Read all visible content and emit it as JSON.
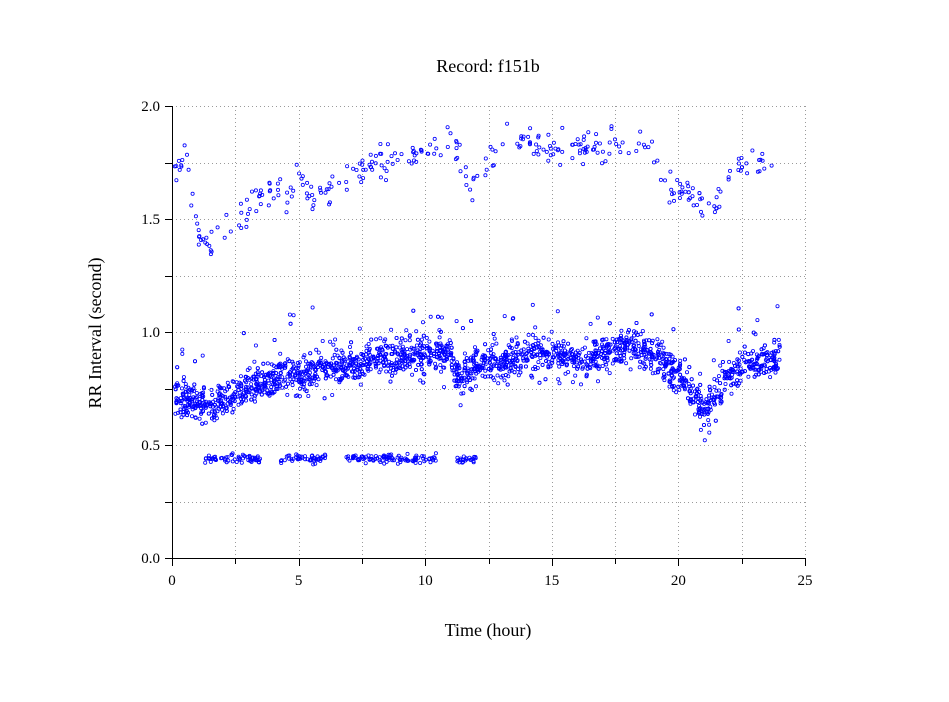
{
  "chart_data": {
    "type": "scatter",
    "title": "Record:  f151b",
    "xlabel": "Time (hour)",
    "ylabel": "RR Interval (second)",
    "xlim": [
      0,
      25
    ],
    "ylim": [
      0,
      2.0
    ],
    "xticks": [
      0,
      5,
      10,
      15,
      20,
      25
    ],
    "xtick_labels": [
      "0",
      "5",
      "10",
      "15",
      "20",
      "25"
    ],
    "yticks": [
      0.0,
      0.5,
      1.0,
      1.5,
      2.0
    ],
    "ytick_labels": [
      "0.0",
      "0.5",
      "1.0",
      "1.5",
      "2.0"
    ],
    "x_minor_step": 2.5,
    "y_minor_step": 0.25,
    "grid": true,
    "marker": "open-circle",
    "color": "#0000ff",
    "series": [
      {
        "x_range": [
          0.1,
          24.0
        ],
        "baseline_trend": [
          [
            0.1,
            0.72
          ],
          [
            0.5,
            0.7
          ],
          [
            1.0,
            0.69
          ],
          [
            1.5,
            0.68
          ],
          [
            2.0,
            0.7
          ],
          [
            2.5,
            0.73
          ],
          [
            3.0,
            0.75
          ],
          [
            3.5,
            0.78
          ],
          [
            4.0,
            0.8
          ],
          [
            4.5,
            0.83
          ],
          [
            5.0,
            0.8
          ],
          [
            5.5,
            0.82
          ],
          [
            6.0,
            0.86
          ],
          [
            7.0,
            0.85
          ],
          [
            8.0,
            0.88
          ],
          [
            9.0,
            0.9
          ],
          [
            10.0,
            0.9
          ],
          [
            10.5,
            0.91
          ],
          [
            11.0,
            0.9
          ],
          [
            11.3,
            0.8
          ],
          [
            11.8,
            0.82
          ],
          [
            12.0,
            0.85
          ],
          [
            12.5,
            0.88
          ],
          [
            13.0,
            0.85
          ],
          [
            13.5,
            0.88
          ],
          [
            14.0,
            0.9
          ],
          [
            14.5,
            0.92
          ],
          [
            15.0,
            0.9
          ],
          [
            15.5,
            0.9
          ],
          [
            16.0,
            0.88
          ],
          [
            16.5,
            0.87
          ],
          [
            17.0,
            0.9
          ],
          [
            17.5,
            0.93
          ],
          [
            18.0,
            0.95
          ],
          [
            18.5,
            0.92
          ],
          [
            19.0,
            0.9
          ],
          [
            19.5,
            0.85
          ],
          [
            20.0,
            0.8
          ],
          [
            20.5,
            0.74
          ],
          [
            21.0,
            0.66
          ],
          [
            21.5,
            0.72
          ],
          [
            22.0,
            0.8
          ],
          [
            22.5,
            0.85
          ],
          [
            23.0,
            0.86
          ],
          [
            23.5,
            0.87
          ],
          [
            24.0,
            0.88
          ]
        ],
        "band_spread": 0.09,
        "lower_cluster": {
          "y_center": 0.44,
          "segments": [
            [
              1.3,
              3.5
            ],
            [
              4.3,
              6.2
            ],
            [
              6.8,
              10.5
            ],
            [
              11.2,
              12.0
            ]
          ]
        },
        "upper_cluster": [
          [
            0.2,
            1.7
          ],
          [
            0.5,
            1.8
          ],
          [
            1.0,
            1.45
          ],
          [
            1.5,
            1.38
          ],
          [
            2.0,
            1.45
          ],
          [
            2.5,
            1.5
          ],
          [
            3.0,
            1.52
          ],
          [
            3.5,
            1.6
          ],
          [
            4.0,
            1.62
          ],
          [
            4.5,
            1.58
          ],
          [
            5.0,
            1.7
          ],
          [
            5.5,
            1.62
          ],
          [
            6.0,
            1.6
          ],
          [
            7.0,
            1.7
          ],
          [
            8.0,
            1.75
          ],
          [
            9.0,
            1.78
          ],
          [
            10.0,
            1.8
          ],
          [
            11.0,
            1.87
          ],
          [
            11.8,
            1.65
          ],
          [
            12.5,
            1.75
          ],
          [
            13.0,
            1.88
          ],
          [
            14.0,
            1.86
          ],
          [
            15.0,
            1.8
          ],
          [
            16.0,
            1.82
          ],
          [
            17.0,
            1.8
          ],
          [
            18.0,
            1.83
          ],
          [
            19.0,
            1.8
          ],
          [
            19.5,
            1.65
          ],
          [
            20.0,
            1.62
          ],
          [
            21.5,
            1.55
          ],
          [
            22.0,
            1.7
          ],
          [
            22.5,
            1.75
          ],
          [
            23.0,
            1.78
          ],
          [
            23.7,
            1.72
          ]
        ]
      }
    ]
  }
}
